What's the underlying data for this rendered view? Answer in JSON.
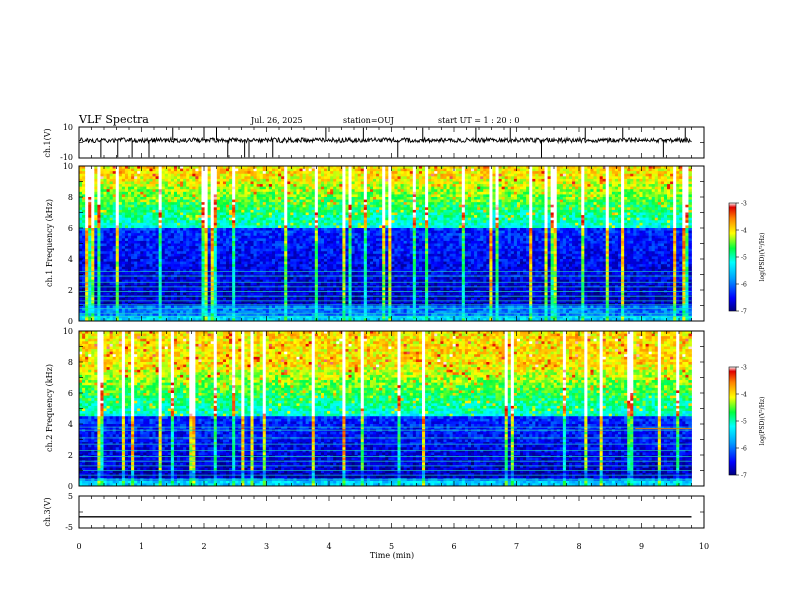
{
  "header": {
    "title": "VLF Spectra",
    "date": "Jul. 26, 2025",
    "station": "station=OUJ",
    "start": "start UT =  1 : 20 : 0"
  },
  "colorbar": {
    "ticks": [
      "-3",
      "-4",
      "-5",
      "-6",
      "-7"
    ],
    "label": "log(PSD)(V²/Hz)"
  },
  "chart_data": [
    {
      "type": "line",
      "title": "VLF Spectra",
      "ylabel": "ch.1(V)",
      "ylim": [
        -10,
        10
      ],
      "y_ticks": [
        "10",
        "-10"
      ],
      "xlim": [
        0,
        10
      ],
      "description_values": {
        "baseline": 1.5,
        "noise_amplitude": 1.5,
        "spike_times": [
          0.35,
          0.62,
          0.85,
          1.12,
          1.5,
          2.0,
          2.2,
          2.38,
          2.65,
          2.72,
          3.1,
          3.95,
          4.55,
          5.1,
          5.5,
          6.35,
          6.9,
          7.4,
          8.1,
          8.7,
          9.35,
          9.7
        ]
      }
    },
    {
      "type": "heatmap",
      "ylabel": "ch.1 Frequency (kHz)",
      "ylim": [
        0,
        10
      ],
      "y_ticks": [
        "0",
        "2",
        "4",
        "6",
        "8",
        "10"
      ],
      "xlim": [
        0,
        9.8
      ],
      "zlim": [
        -7,
        -3
      ],
      "z_label": "log(PSD)(V²/Hz)",
      "features": {
        "dark_band_khz": [
          1.0,
          6.0
        ],
        "bright_band_khz": [
          6.0,
          10.0
        ],
        "narrowband_lines_khz": [
          0.3,
          0.5,
          0.8,
          1.05,
          1.3,
          1.6,
          1.9,
          2.2,
          2.5,
          2.9,
          3.2
        ]
      }
    },
    {
      "type": "heatmap",
      "ylabel": "ch.2 Frequency (kHz)",
      "ylim": [
        0,
        10
      ],
      "y_ticks": [
        "0",
        "2",
        "4",
        "6",
        "8",
        "10"
      ],
      "xlim": [
        0,
        9.8
      ],
      "zlim": [
        -7,
        -3
      ],
      "z_label": "log(PSD)(V²/Hz)",
      "features": {
        "dark_band_khz": [
          0.5,
          4.5
        ],
        "bright_band_khz": [
          4.5,
          10.0
        ],
        "narrowband_lines_khz": [
          0.4,
          0.7,
          1.0,
          1.3,
          1.6,
          1.9,
          2.3,
          2.7,
          3.1,
          3.6,
          3.8
        ],
        "orange_line_khz": 3.7,
        "orange_line_start_min": 8.9
      }
    },
    {
      "type": "line",
      "ylabel": "ch.3(V)",
      "ylim": [
        -5,
        5
      ],
      "y_ticks": [
        "5",
        "0",
        "-5"
      ],
      "xlim": [
        0,
        10
      ],
      "xlabel": "Time (min)",
      "x_ticks": [
        "0",
        "1",
        "2",
        "3",
        "4",
        "5",
        "6",
        "7",
        "8",
        "9",
        "10"
      ],
      "values": [
        [
          0,
          -1.5
        ],
        [
          9.8,
          -1.5
        ]
      ]
    }
  ]
}
